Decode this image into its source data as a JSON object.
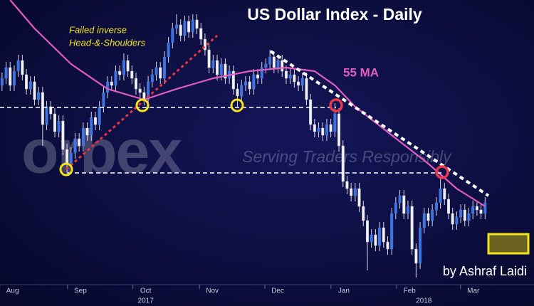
{
  "chart_data": {
    "type": "candlestick",
    "title": "US Dollar Index - Daily",
    "ylim": [
      88,
      96
    ],
    "xlim": [
      -0.5,
      120
    ],
    "color_up": "#3f74e0",
    "color_down": "#f2f2f2",
    "xticks": [
      {
        "value": 2.6,
        "label": "Aug"
      },
      {
        "value": 19.3,
        "label": "Sep"
      },
      {
        "value": 35.4,
        "label": "Oct"
      },
      {
        "value": 51.8,
        "label": "Nov"
      },
      {
        "value": 67.9,
        "label": "Dec"
      },
      {
        "value": 84.2,
        "label": "Jan"
      },
      {
        "value": 100.4,
        "label": "Feb"
      },
      {
        "value": 116.1,
        "label": "Mar"
      }
    ],
    "year_labels": [
      {
        "value": 35.4,
        "label": "2017"
      },
      {
        "value": 103.9,
        "label": "2018"
      }
    ],
    "ohlc": [
      [
        93.6,
        93.96,
        93.44,
        93.8
      ],
      [
        93.8,
        94.26,
        93.64,
        94.1
      ],
      [
        94.1,
        94.26,
        93.44,
        93.6
      ],
      [
        93.6,
        94.16,
        93.44,
        94.0
      ],
      [
        94.0,
        94.46,
        93.84,
        94.3
      ],
      [
        94.3,
        94.46,
        93.74,
        93.9
      ],
      [
        93.9,
        94.06,
        93.34,
        93.5
      ],
      [
        93.5,
        93.86,
        93.34,
        93.7
      ],
      [
        93.7,
        93.86,
        93.04,
        93.2
      ],
      [
        93.2,
        93.56,
        93.04,
        93.4
      ],
      [
        93.4,
        93.56,
        91.9,
        92.5
      ],
      [
        92.5,
        93.16,
        92.34,
        93.0
      ],
      [
        93.0,
        93.16,
        92.64,
        92.8
      ],
      [
        92.8,
        92.96,
        92.14,
        92.3
      ],
      [
        92.3,
        92.76,
        92.14,
        92.6
      ],
      [
        92.6,
        92.76,
        91.64,
        91.8
      ],
      [
        91.8,
        91.96,
        91.1,
        91.4
      ],
      [
        91.4,
        91.86,
        91.24,
        91.7
      ],
      [
        91.7,
        92.26,
        91.54,
        92.1
      ],
      [
        92.1,
        92.26,
        91.74,
        91.9
      ],
      [
        91.9,
        92.56,
        91.74,
        92.4
      ],
      [
        92.4,
        92.56,
        92.04,
        92.2
      ],
      [
        92.2,
        92.86,
        92.04,
        92.7
      ],
      [
        92.7,
        92.86,
        92.34,
        92.5
      ],
      [
        92.5,
        93.16,
        92.34,
        93.0
      ],
      [
        93.0,
        93.56,
        92.84,
        93.4
      ],
      [
        93.4,
        93.86,
        93.24,
        93.7
      ],
      [
        93.7,
        93.86,
        93.44,
        93.6
      ],
      [
        93.6,
        94.16,
        93.44,
        94.0
      ],
      [
        94.0,
        94.16,
        93.74,
        93.9
      ],
      [
        93.9,
        94.5,
        93.74,
        94.3
      ],
      [
        94.3,
        94.46,
        93.84,
        94.0
      ],
      [
        94.0,
        94.16,
        93.64,
        93.8
      ],
      [
        93.8,
        93.96,
        93.34,
        93.5
      ],
      [
        93.5,
        93.66,
        93.24,
        93.4
      ],
      [
        93.4,
        93.56,
        93.04,
        93.2
      ],
      [
        93.2,
        93.86,
        93.04,
        93.7
      ],
      [
        93.7,
        94.06,
        93.54,
        93.9
      ],
      [
        93.9,
        94.26,
        93.74,
        94.1
      ],
      [
        94.1,
        94.26,
        93.64,
        93.8
      ],
      [
        93.8,
        94.56,
        93.64,
        94.4
      ],
      [
        94.4,
        94.96,
        94.24,
        94.8
      ],
      [
        94.8,
        95.36,
        94.64,
        95.2
      ],
      [
        95.2,
        95.6,
        95.04,
        95.3
      ],
      [
        95.3,
        95.46,
        94.84,
        95.0
      ],
      [
        95.0,
        95.56,
        94.84,
        95.4
      ],
      [
        95.4,
        95.56,
        94.94,
        95.1
      ],
      [
        95.1,
        95.6,
        94.94,
        95.44
      ],
      [
        95.44,
        95.6,
        95.04,
        95.2
      ],
      [
        95.2,
        95.36,
        94.74,
        94.9
      ],
      [
        94.9,
        95.06,
        94.44,
        94.6
      ],
      [
        94.6,
        94.76,
        93.94,
        94.1
      ],
      [
        94.1,
        94.46,
        93.94,
        94.3
      ],
      [
        94.3,
        94.46,
        93.74,
        93.9
      ],
      [
        93.9,
        94.36,
        93.74,
        94.2
      ],
      [
        94.2,
        94.36,
        93.64,
        93.8
      ],
      [
        93.8,
        94.16,
        93.64,
        94.0
      ],
      [
        94.0,
        94.16,
        93.34,
        93.5
      ],
      [
        93.5,
        93.66,
        93.0,
        93.3
      ],
      [
        93.3,
        93.76,
        93.14,
        93.6
      ],
      [
        93.6,
        93.86,
        93.44,
        93.7
      ],
      [
        93.7,
        93.86,
        93.34,
        93.5
      ],
      [
        93.5,
        94.06,
        93.34,
        93.9
      ],
      [
        93.9,
        94.06,
        93.64,
        93.8
      ],
      [
        93.8,
        94.26,
        93.64,
        94.1
      ],
      [
        94.1,
        94.36,
        93.94,
        94.2
      ],
      [
        94.2,
        94.6,
        94.04,
        94.4
      ],
      [
        94.4,
        94.56,
        93.94,
        94.1
      ],
      [
        94.1,
        94.46,
        93.94,
        94.3
      ],
      [
        94.3,
        94.46,
        93.84,
        94.0
      ],
      [
        94.0,
        94.16,
        93.64,
        93.8
      ],
      [
        93.8,
        94.06,
        93.64,
        93.9
      ],
      [
        93.9,
        94.06,
        93.54,
        93.7
      ],
      [
        93.7,
        93.86,
        93.44,
        93.6
      ],
      [
        93.6,
        93.96,
        93.44,
        93.8
      ],
      [
        93.8,
        93.96,
        93.04,
        93.2
      ],
      [
        93.2,
        93.36,
        92.34,
        92.5
      ],
      [
        92.5,
        92.66,
        92.14,
        92.3
      ],
      [
        92.3,
        92.56,
        92.14,
        92.4
      ],
      [
        92.4,
        92.56,
        92.04,
        92.2
      ],
      [
        92.2,
        92.66,
        92.04,
        92.5
      ],
      [
        92.5,
        92.66,
        92.14,
        92.3
      ],
      [
        92.3,
        93.1,
        92.14,
        92.8
      ],
      [
        92.8,
        92.96,
        91.74,
        91.9
      ],
      [
        91.9,
        92.06,
        90.74,
        90.9
      ],
      [
        90.9,
        91.06,
        90.54,
        90.7
      ],
      [
        90.7,
        90.86,
        90.34,
        90.5
      ],
      [
        90.5,
        90.86,
        90.34,
        90.7
      ],
      [
        90.7,
        90.86,
        90.04,
        90.2
      ],
      [
        90.2,
        90.36,
        89.64,
        89.8
      ],
      [
        89.8,
        89.96,
        88.4,
        89.2
      ],
      [
        89.2,
        89.56,
        89.04,
        89.4
      ],
      [
        89.4,
        89.56,
        88.94,
        89.1
      ],
      [
        89.1,
        89.76,
        88.94,
        89.6
      ],
      [
        89.6,
        89.76,
        89.04,
        89.2
      ],
      [
        89.2,
        89.36,
        88.84,
        89.0
      ],
      [
        89.0,
        90.16,
        88.84,
        90.0
      ],
      [
        90.0,
        90.46,
        89.84,
        90.3
      ],
      [
        90.3,
        90.66,
        90.14,
        90.5
      ],
      [
        90.5,
        90.66,
        89.84,
        90.0
      ],
      [
        90.0,
        90.36,
        89.84,
        90.2
      ],
      [
        90.2,
        90.36,
        88.84,
        89.0
      ],
      [
        89.0,
        89.16,
        88.2,
        88.6
      ],
      [
        88.6,
        89.76,
        88.44,
        89.6
      ],
      [
        89.6,
        90.16,
        89.44,
        90.0
      ],
      [
        90.0,
        90.16,
        89.64,
        89.8
      ],
      [
        89.8,
        90.26,
        89.64,
        90.1
      ],
      [
        90.1,
        90.46,
        89.94,
        90.3
      ],
      [
        90.3,
        91.0,
        90.14,
        90.7
      ],
      [
        90.7,
        90.86,
        90.24,
        90.4
      ],
      [
        90.4,
        90.56,
        89.84,
        90.0
      ],
      [
        90.0,
        90.16,
        89.54,
        89.7
      ],
      [
        89.7,
        90.06,
        89.54,
        89.9
      ],
      [
        89.9,
        90.26,
        89.74,
        90.1
      ],
      [
        90.1,
        90.26,
        89.64,
        89.8
      ],
      [
        89.8,
        90.16,
        89.64,
        90.0
      ],
      [
        90.0,
        90.36,
        89.84,
        90.2
      ],
      [
        90.2,
        90.36,
        89.94,
        90.1
      ],
      [
        90.1,
        90.26,
        89.84,
        90.0
      ],
      [
        90.0,
        90.46,
        89.84,
        90.3
      ]
    ],
    "ma": {
      "name": "55 MA",
      "color": "#e35cc0",
      "x": [
        2,
        8,
        17,
        26,
        35,
        43,
        52,
        61,
        70,
        77,
        82,
        87,
        96,
        105,
        112,
        119
      ],
      "values": [
        96.0,
        95.2,
        94.2,
        93.5,
        93.2,
        93.5,
        93.8,
        94.0,
        94.1,
        94.0,
        93.6,
        93.0,
        92.2,
        91.4,
        90.7,
        90.2
      ]
    },
    "annotation": [
      "Failed inverse",
      "Head-&-Shoulders"
    ],
    "watermark": {
      "brand": "orbex",
      "tagline": "Serving Traders Responsibly"
    },
    "credit": "by Ashraf Laidi"
  }
}
